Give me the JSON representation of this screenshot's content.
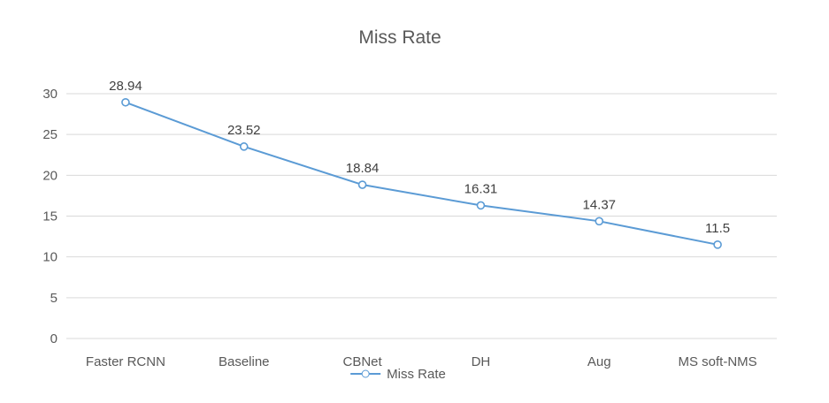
{
  "chart_data": {
    "type": "line",
    "title": "Miss Rate",
    "categories": [
      "Faster RCNN",
      "Baseline",
      "CBNet",
      "DH",
      "Aug",
      "MS soft-NMS"
    ],
    "series": [
      {
        "name": "Miss Rate",
        "values": [
          28.94,
          23.52,
          18.84,
          16.31,
          14.37,
          11.5
        ],
        "color": "#5B9BD5",
        "marker": "circle-open"
      }
    ],
    "data_labels": [
      "28.94",
      "23.52",
      "18.84",
      "16.31",
      "14.37",
      "11.5"
    ],
    "y_ticks": [
      0,
      5,
      10,
      15,
      20,
      25,
      30
    ],
    "ylim": [
      0,
      30
    ],
    "xlabel": "",
    "ylabel": "",
    "grid": true,
    "legend": {
      "position": "bottom-center",
      "entries": [
        "Miss Rate"
      ]
    },
    "colors": {
      "line": "#5B9BD5",
      "marker_fill": "#FFFFFF",
      "gridline": "#D9D9D9",
      "axis_text": "#595959",
      "data_label_text": "#404040",
      "title_text": "#595959",
      "background": "#FFFFFF"
    }
  }
}
